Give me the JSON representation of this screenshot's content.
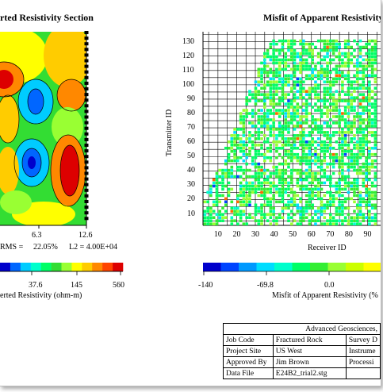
{
  "left_panel": {
    "title": "rted Resistivity Section",
    "x_ticks": [
      "6.3",
      "12.6"
    ],
    "rms_label": "RMS =",
    "rms_value": "22.05%",
    "l2_label": "L2 = 4.00E+04",
    "colorbar_ticks": [
      "37.6",
      "145",
      "560"
    ],
    "colorbar_label": "erted Resistivity (ohm-m)",
    "colors": [
      "#0000cc",
      "#0066ff",
      "#00ccff",
      "#00ffcc",
      "#00ff66",
      "#33dd33",
      "#99ff33",
      "#ffff00",
      "#ffcc00",
      "#ff8800",
      "#ff4400",
      "#dd0000"
    ]
  },
  "right_panel": {
    "title": "Misfit of Apparent Resistivity",
    "y_axis_label": "Transmitter ID",
    "x_axis_label": "Receiver ID",
    "x_ticks": [
      "10",
      "20",
      "30",
      "40",
      "50",
      "60",
      "70",
      "80",
      "90"
    ],
    "y_ticks": [
      "10",
      "20",
      "30",
      "40",
      "50",
      "60",
      "70",
      "80",
      "90",
      "100",
      "110",
      "120",
      "130"
    ],
    "colorbar_ticks": [
      "-140",
      "-69.8",
      "0.0"
    ],
    "colorbar_label": "Misfit of Apparent Resistivity (%",
    "colors": [
      "#0000cc",
      "#0044ff",
      "#0099ff",
      "#00ddff",
      "#00ffcc",
      "#00ff66",
      "#33ee33",
      "#99ff33",
      "#ccff00",
      "#ffff00"
    ]
  },
  "info_table": {
    "header": "Advanced Geosciences,",
    "rows": [
      {
        "label": "Job Code",
        "value": "Fractured Rock",
        "extra": "Survey D"
      },
      {
        "label": "Project Site",
        "value": "US West",
        "extra": "Instrume"
      },
      {
        "label": "Approved By",
        "value": "Jim Brown",
        "extra": "Processi"
      },
      {
        "label": "Data File",
        "value": "E24B2_trial2.stg",
        "extra": ""
      }
    ]
  }
}
